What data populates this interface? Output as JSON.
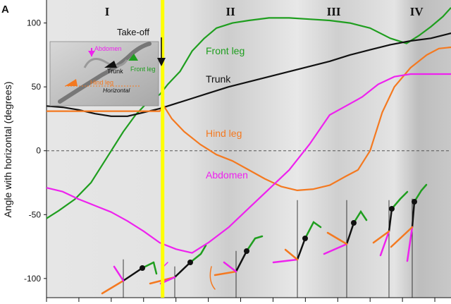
{
  "panel_letter": "A",
  "colors": {
    "front": "#1f9e1f",
    "trunk": "#111111",
    "hind": "#f47920",
    "abdomen": "#ee22ee",
    "takeoff": "#ffff00",
    "zero_line": "#555555"
  },
  "chart_data": {
    "type": "line",
    "title": "",
    "xlabel": "",
    "ylabel": "Angle with horizontal (degrees)",
    "xlim": [
      0,
      100
    ],
    "ylim": [
      -115,
      118
    ],
    "yticks": [
      -100,
      -50,
      0,
      50,
      100
    ],
    "xticks": [
      0,
      8,
      16,
      24,
      32,
      40,
      48,
      56,
      64,
      72,
      80,
      88,
      96
    ],
    "zero_line": 0,
    "takeoff_x": 28.7,
    "takeoff_label": "Take-off",
    "phases": [
      {
        "label": "I",
        "x": 15
      },
      {
        "label": "II",
        "x": 45.5
      },
      {
        "label": "III",
        "x": 71
      },
      {
        "label": "IV",
        "x": 91.5
      }
    ],
    "series": [
      {
        "name": "Front leg",
        "key": "front",
        "x": [
          0,
          3,
          7,
          11,
          15,
          19,
          22,
          25,
          28,
          30,
          33,
          36,
          39,
          42,
          46,
          50,
          55,
          60,
          65,
          70,
          75,
          80,
          85,
          89,
          92,
          95,
          98,
          100
        ],
        "y": [
          -53,
          -47,
          -38,
          -25,
          -5,
          15,
          28,
          38,
          44,
          52,
          62,
          78,
          88,
          96,
          100,
          102,
          104,
          104,
          103,
          102,
          100,
          96,
          88,
          84,
          90,
          97,
          105,
          112
        ]
      },
      {
        "name": "Trunk",
        "key": "trunk",
        "x": [
          0,
          4,
          8,
          12,
          16,
          20,
          24,
          28,
          32,
          36,
          40,
          45,
          50,
          55,
          60,
          65,
          70,
          75,
          80,
          85,
          90,
          95,
          100
        ],
        "y": [
          35,
          34,
          32,
          29,
          27,
          27,
          30,
          33,
          37,
          41,
          45,
          50,
          54,
          58,
          62,
          66,
          70,
          75,
          79,
          83,
          86,
          88,
          92
        ]
      },
      {
        "name": "Hind leg",
        "key": "hind",
        "x": [
          0,
          5,
          10,
          15,
          20,
          25,
          28,
          29,
          31,
          34,
          38,
          42,
          46,
          50,
          54,
          58,
          62,
          66,
          70,
          74,
          77,
          80,
          83,
          86,
          90,
          94,
          97,
          100
        ],
        "y": [
          31,
          31,
          31,
          31,
          31,
          31,
          31,
          35,
          25,
          15,
          5,
          -3,
          -8,
          -15,
          -22,
          -28,
          -31,
          -30,
          -27,
          -20,
          -15,
          0,
          30,
          50,
          65,
          75,
          80,
          81
        ]
      },
      {
        "name": "Abdomen",
        "key": "abdomen",
        "x": [
          0,
          4,
          8,
          12,
          16,
          20,
          24,
          28,
          32,
          36,
          40,
          45,
          50,
          55,
          60,
          65,
          70,
          74,
          78,
          82,
          86,
          90,
          95,
          100
        ],
        "y": [
          -29,
          -32,
          -38,
          -43,
          -48,
          -55,
          -63,
          -72,
          -77,
          -80,
          -72,
          -60,
          -45,
          -30,
          -15,
          5,
          28,
          35,
          42,
          52,
          58,
          60,
          60,
          60
        ]
      }
    ]
  },
  "inset": {
    "abdomen": "Abdomen",
    "trunk": "Trunk",
    "front_leg": "Front leg",
    "hind_leg": "Hind leg",
    "horizontal": "Horizontal"
  }
}
